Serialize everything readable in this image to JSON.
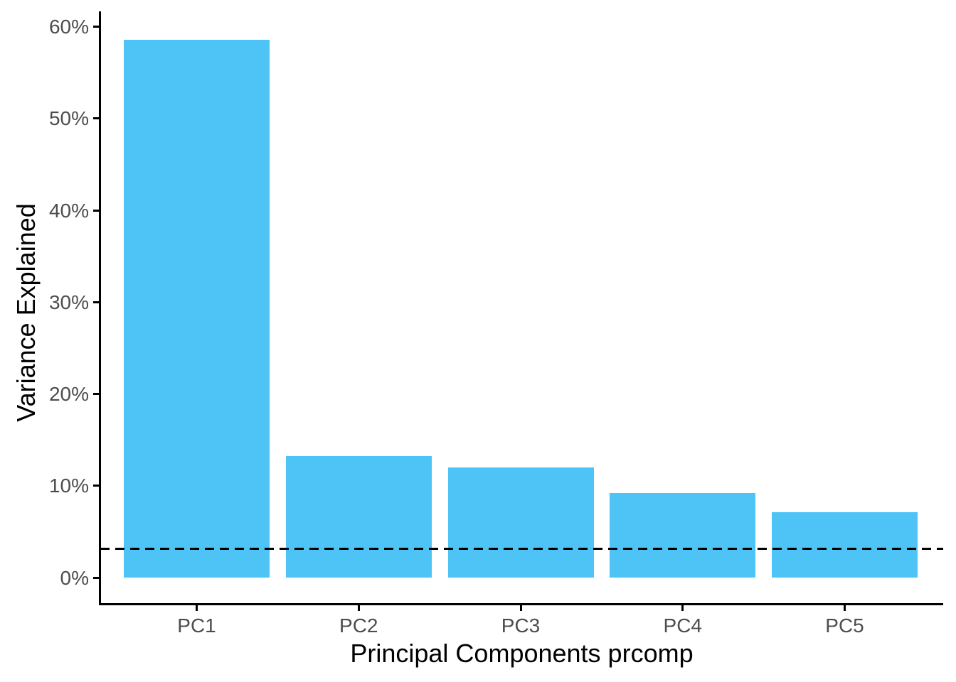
{
  "figure": {
    "background_color": "#FFFFFF",
    "xlabel": "Principal Components prcomp",
    "ylabel": "Variance Explained"
  },
  "chart_data": {
    "type": "bar",
    "categories": [
      "PC1",
      "PC2",
      "PC3",
      "PC4",
      "PC5"
    ],
    "values": [
      58.6,
      13.2,
      12.0,
      9.2,
      7.1
    ],
    "value_unit": "percent",
    "title": "",
    "xlabel": "Principal Components prcomp",
    "ylabel": "Variance Explained",
    "ylim": [
      0,
      60
    ],
    "ytick_values": [
      0,
      10,
      20,
      30,
      40,
      50,
      60
    ],
    "ytick_labels": [
      "0%",
      "10%",
      "20%",
      "30%",
      "40%",
      "50%",
      "60%"
    ],
    "grid": false,
    "legend_position": "none",
    "bar_color": "#4DC4F5",
    "axis_color": "#000000",
    "tick_label_color": "#4d4d4d",
    "hline": {
      "value": 3.1,
      "style": "dashed",
      "color": "#000000"
    }
  }
}
